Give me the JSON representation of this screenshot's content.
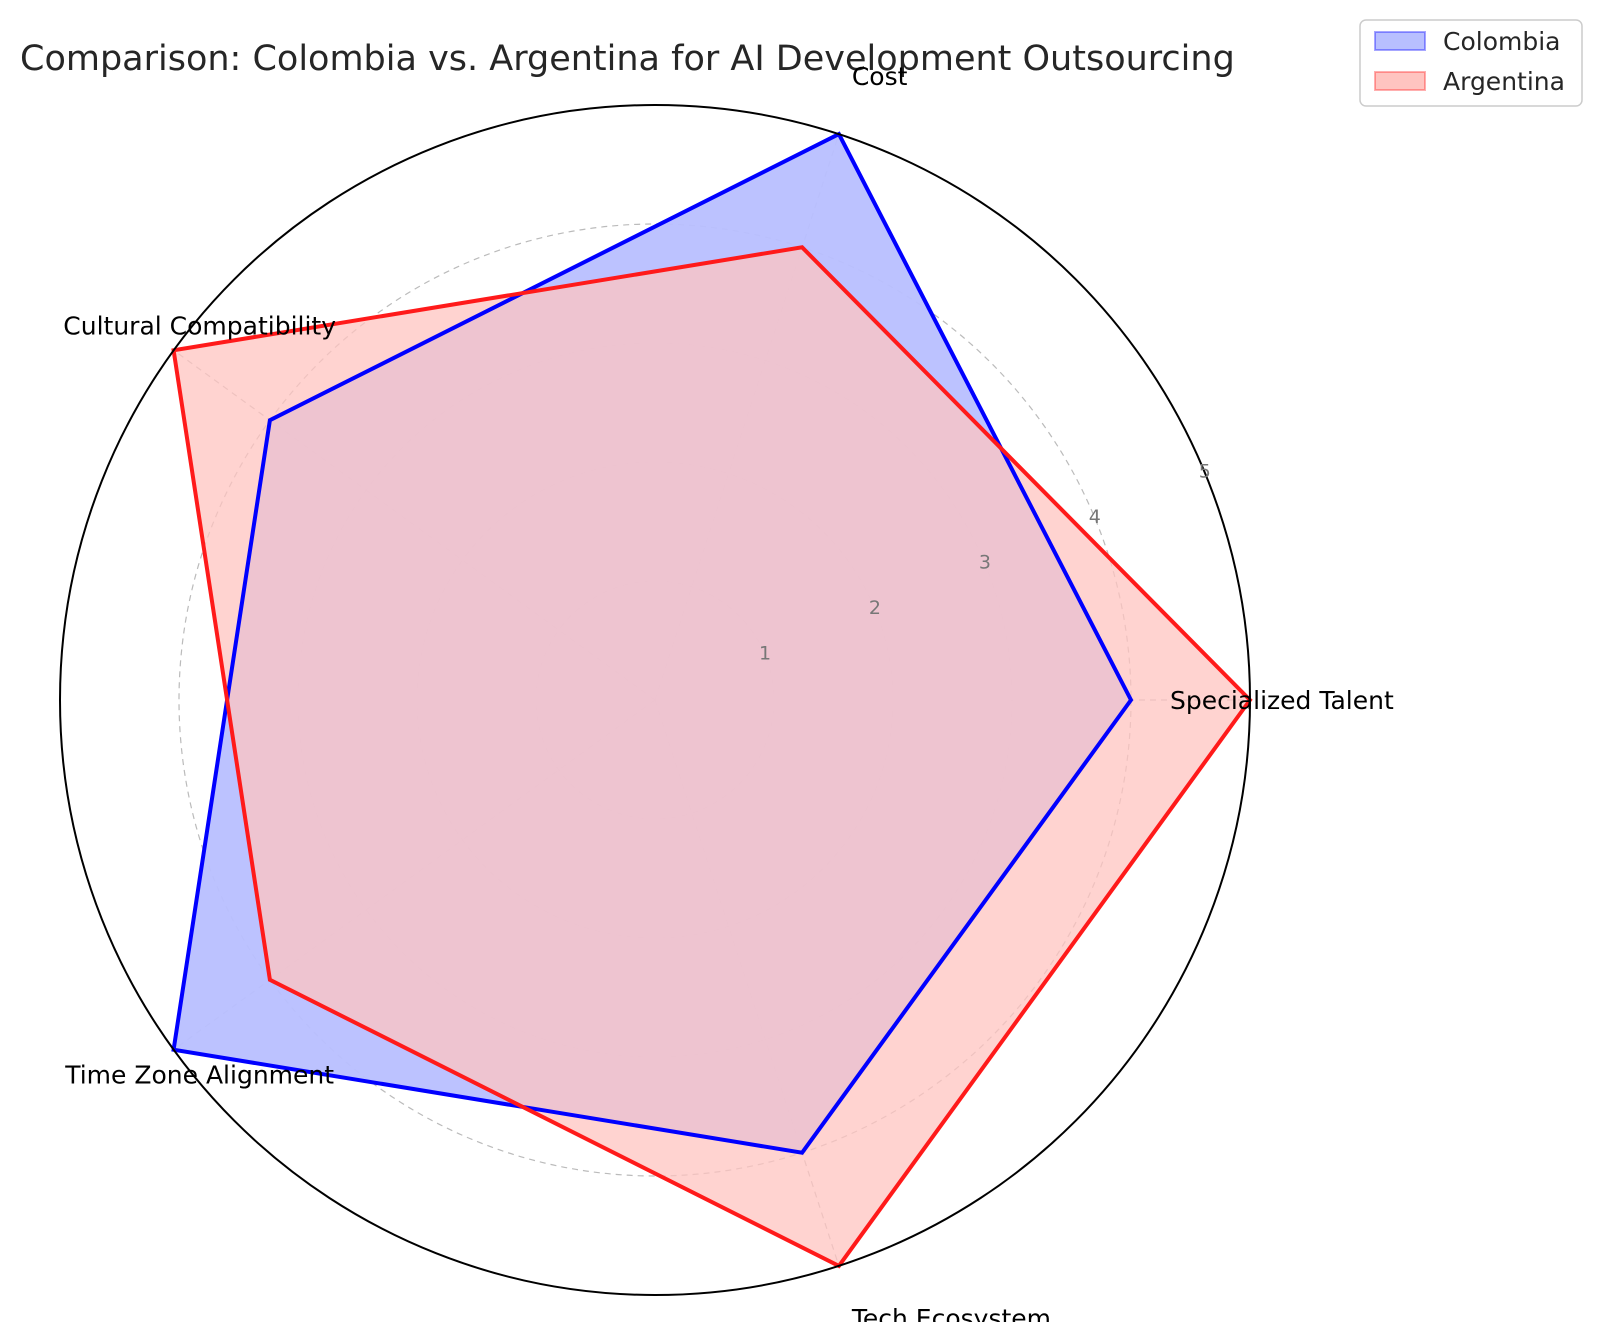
{
  "chart_data": {
    "type": "radar",
    "title": "Comparison: Colombia vs. Argentina for AI Development Outsourcing",
    "categories": [
      "Specialized Talent",
      "Cost",
      "Cultural Compatibility",
      "Time Zone Alignment",
      "Tech Ecosystem"
    ],
    "series": [
      {
        "name": "Colombia",
        "values": [
          4,
          5,
          4,
          5,
          4
        ],
        "color": "#0000ff",
        "fill": "#b8bfff"
      },
      {
        "name": "Argentina",
        "values": [
          5,
          4,
          5,
          4,
          5
        ],
        "color": "#ff1a1a",
        "fill": "#ffc4c0"
      }
    ],
    "rlim": [
      0,
      5
    ],
    "rticks": [
      1,
      2,
      3,
      4,
      5
    ],
    "grid": true,
    "legend_position": "top-right"
  }
}
